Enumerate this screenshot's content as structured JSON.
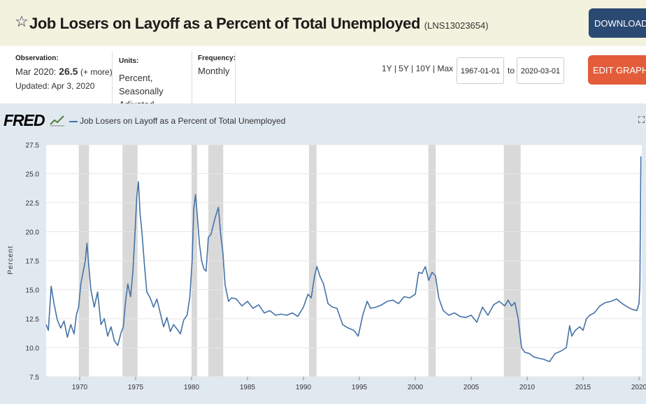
{
  "header": {
    "title": "Job Losers on Layoff as a Percent of Total Unemployed",
    "series_id": "(LNS13023654)",
    "download_label": "DOWNLOAD",
    "star_icon": "star-icon",
    "download_icon": "download-icon"
  },
  "meta": {
    "observation_label": "Observation:",
    "observation_date": "Mar 2020:",
    "observation_value": "26.5",
    "observation_more": "(+ more)",
    "updated": "Updated: Apr 3, 2020",
    "units_label": "Units:",
    "units_line1": "Percent,",
    "units_line2": "Seasonally Adjusted",
    "frequency_label": "Frequency:",
    "frequency_value": "Monthly"
  },
  "controls": {
    "range_1y": "1Y",
    "range_5y": "5Y",
    "range_10y": "10Y",
    "range_max": "Max",
    "sep": "|",
    "start_date": "1967-01-01",
    "to_label": "to",
    "end_date": "2020-03-01",
    "edit_label": "EDIT GRAPH",
    "gear_icon": "gear-icon"
  },
  "graph": {
    "logo": "FRED",
    "legend": "Job Losers on Layoff as a Percent of Total Unemployed",
    "line_color": "#4572a7",
    "recession_color": "#d9d9d9",
    "expand_icon": "expand-icon"
  },
  "chart_data": {
    "type": "line",
    "title": "Job Losers on Layoff as a Percent of Total Unemployed",
    "ylabel": "Percent",
    "xlabel": "",
    "xlim": [
      1967.0,
      2020.25
    ],
    "ylim": [
      7.5,
      27.5
    ],
    "yticks": [
      7.5,
      10.0,
      12.5,
      15.0,
      17.5,
      20.0,
      22.5,
      25.0,
      27.5
    ],
    "xticks": [
      1970,
      1975,
      1980,
      1985,
      1990,
      1995,
      2000,
      2005,
      2010,
      2015,
      2020
    ],
    "recessions": [
      [
        1969.92,
        1970.83
      ],
      [
        1973.83,
        1975.17
      ],
      [
        1980.0,
        1980.5
      ],
      [
        1981.5,
        1982.83
      ],
      [
        1990.5,
        1991.17
      ],
      [
        2001.17,
        2001.83
      ],
      [
        2007.92,
        2009.42
      ]
    ],
    "series": [
      {
        "name": "Job Losers on Layoff as a Percent of Total Unemployed",
        "x": [
          1967.0,
          1967.2,
          1967.45,
          1967.7,
          1968.0,
          1968.3,
          1968.6,
          1968.9,
          1969.2,
          1969.5,
          1969.7,
          1969.9,
          1970.1,
          1970.3,
          1970.5,
          1970.65,
          1970.8,
          1971.0,
          1971.3,
          1971.6,
          1971.9,
          1972.2,
          1972.5,
          1972.8,
          1973.1,
          1973.4,
          1973.7,
          1973.9,
          1974.1,
          1974.3,
          1974.55,
          1974.75,
          1974.95,
          1975.1,
          1975.25,
          1975.4,
          1975.55,
          1975.8,
          1976.0,
          1976.3,
          1976.6,
          1976.9,
          1977.2,
          1977.5,
          1977.8,
          1978.1,
          1978.4,
          1978.7,
          1979.0,
          1979.3,
          1979.6,
          1979.85,
          1980.05,
          1980.2,
          1980.35,
          1980.5,
          1980.7,
          1980.9,
          1981.1,
          1981.3,
          1981.5,
          1981.75,
          1982.0,
          1982.2,
          1982.4,
          1982.6,
          1982.8,
          1983.0,
          1983.3,
          1983.6,
          1984.0,
          1984.5,
          1985.0,
          1985.5,
          1986.0,
          1986.5,
          1987.0,
          1987.5,
          1988.0,
          1988.5,
          1989.0,
          1989.5,
          1990.0,
          1990.4,
          1990.7,
          1991.0,
          1991.2,
          1991.5,
          1991.8,
          1992.2,
          1992.6,
          1993.0,
          1993.5,
          1994.0,
          1994.5,
          1994.9,
          1995.3,
          1995.7,
          1996.0,
          1996.5,
          1997.0,
          1997.5,
          1998.0,
          1998.5,
          1999.0,
          1999.5,
          2000.0,
          2000.3,
          2000.6,
          2000.9,
          2001.2,
          2001.5,
          2001.8,
          2002.1,
          2002.5,
          2003.0,
          2003.5,
          2004.0,
          2004.5,
          2005.0,
          2005.5,
          2006.0,
          2006.5,
          2007.0,
          2007.5,
          2008.0,
          2008.3,
          2008.6,
          2008.9,
          2009.2,
          2009.5,
          2009.8,
          2010.2,
          2010.6,
          2011.0,
          2011.5,
          2012.0,
          2012.5,
          2013.0,
          2013.5,
          2013.8,
          2014.0,
          2014.3,
          2014.7,
          2015.0,
          2015.3,
          2015.6,
          2016.0,
          2016.5,
          2017.0,
          2017.5,
          2018.0,
          2018.5,
          2019.0,
          2019.4,
          2019.8,
          2020.0,
          2020.08,
          2020.17
        ],
        "values": [
          12.0,
          11.5,
          15.3,
          13.8,
          12.4,
          11.7,
          12.3,
          10.9,
          12.0,
          11.2,
          12.8,
          13.5,
          15.5,
          16.5,
          17.5,
          19.0,
          17.2,
          15.0,
          13.5,
          14.8,
          12.0,
          12.5,
          11.0,
          11.8,
          10.6,
          10.2,
          11.3,
          11.8,
          14.0,
          15.5,
          14.4,
          16.5,
          20.0,
          23.0,
          24.3,
          21.5,
          20.1,
          17.0,
          14.8,
          14.3,
          13.5,
          14.2,
          13.0,
          11.8,
          12.6,
          11.4,
          12.0,
          11.6,
          11.2,
          12.4,
          12.8,
          14.4,
          17.5,
          22.0,
          23.2,
          21.5,
          19.0,
          17.5,
          16.8,
          16.6,
          19.5,
          19.8,
          20.8,
          21.5,
          22.1,
          19.8,
          18.2,
          15.4,
          14.0,
          14.3,
          14.2,
          13.6,
          14.0,
          13.4,
          13.7,
          13.0,
          13.2,
          12.8,
          12.9,
          12.8,
          13.0,
          12.7,
          13.5,
          14.6,
          14.3,
          16.2,
          17.0,
          16.1,
          15.5,
          13.8,
          13.5,
          13.4,
          12.0,
          11.7,
          11.5,
          11.0,
          12.8,
          14.0,
          13.4,
          13.5,
          13.7,
          14.0,
          14.1,
          13.8,
          14.4,
          14.3,
          14.6,
          16.5,
          16.4,
          17.0,
          15.8,
          16.5,
          16.2,
          14.3,
          13.2,
          12.8,
          13.0,
          12.7,
          12.6,
          12.8,
          12.2,
          13.5,
          12.8,
          13.7,
          14.0,
          13.6,
          14.1,
          13.6,
          13.9,
          12.5,
          10.0,
          9.6,
          9.5,
          9.2,
          9.1,
          9.0,
          8.8,
          9.5,
          9.7,
          10.0,
          11.9,
          11.0,
          11.5,
          11.8,
          11.5,
          12.5,
          12.8,
          13.0,
          13.6,
          13.9,
          14.0,
          14.2,
          13.8,
          13.5,
          13.3,
          13.2,
          13.8,
          15.5,
          26.5
        ]
      }
    ]
  }
}
